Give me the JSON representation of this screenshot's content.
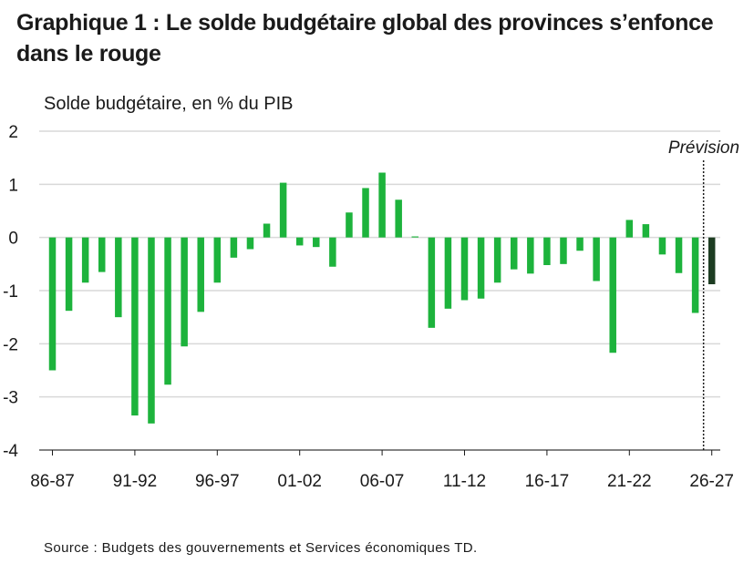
{
  "chart_data": {
    "type": "bar",
    "title": "Graphique 1 : Le solde budgétaire global des provinces s’enfonce dans le rouge",
    "ylabel": "Solde budgétaire, en % du PIB",
    "xlabel": "",
    "ylim": [
      -4,
      2
    ],
    "yticks": [
      "2",
      "1",
      "0",
      "-1",
      "-2",
      "-3",
      "-4"
    ],
    "grid": true,
    "forecast_label": "Prévision",
    "forecast_start_index": 40,
    "colors": {
      "actual": "#1db33c",
      "forecast": "#1d3d22",
      "grid": "#d9d9d9",
      "axis": "#1a1a1a"
    },
    "categories": [
      "86-87",
      "87-88",
      "88-89",
      "89-90",
      "90-91",
      "91-92",
      "92-93",
      "93-94",
      "94-95",
      "95-96",
      "96-97",
      "97-98",
      "98-99",
      "99-00",
      "00-01",
      "01-02",
      "02-03",
      "03-04",
      "04-05",
      "05-06",
      "06-07",
      "07-08",
      "08-09",
      "09-10",
      "10-11",
      "11-12",
      "12-13",
      "13-14",
      "14-15",
      "15-16",
      "16-17",
      "17-18",
      "18-19",
      "19-20",
      "20-21",
      "21-22",
      "22-23",
      "23-24",
      "24-25",
      "25-26",
      "26-27"
    ],
    "tick_labels": [
      {
        "index": 0,
        "label": "86-87"
      },
      {
        "index": 5,
        "label": "91-92"
      },
      {
        "index": 10,
        "label": "96-97"
      },
      {
        "index": 15,
        "label": "01-02"
      },
      {
        "index": 20,
        "label": "06-07"
      },
      {
        "index": 25,
        "label": "11-12"
      },
      {
        "index": 30,
        "label": "16-17"
      },
      {
        "index": 35,
        "label": "21-22"
      },
      {
        "index": 40,
        "label": "26-27"
      }
    ],
    "values": [
      -2.5,
      -1.38,
      -0.85,
      -0.65,
      -1.5,
      -3.35,
      -3.5,
      -2.77,
      -2.05,
      -1.4,
      -0.85,
      -0.38,
      -0.22,
      0.26,
      1.03,
      -0.15,
      -0.18,
      -0.55,
      0.47,
      0.93,
      1.22,
      0.71,
      0.02,
      -1.7,
      -1.34,
      -1.18,
      -1.15,
      -0.85,
      -0.6,
      -0.68,
      -0.52,
      -0.5,
      -0.25,
      -0.82,
      -2.17,
      0.33,
      0.25,
      -0.32,
      -0.67,
      -1.42,
      -0.88
    ],
    "source": "Source : Budgets des gouvernements et Services économiques TD."
  }
}
